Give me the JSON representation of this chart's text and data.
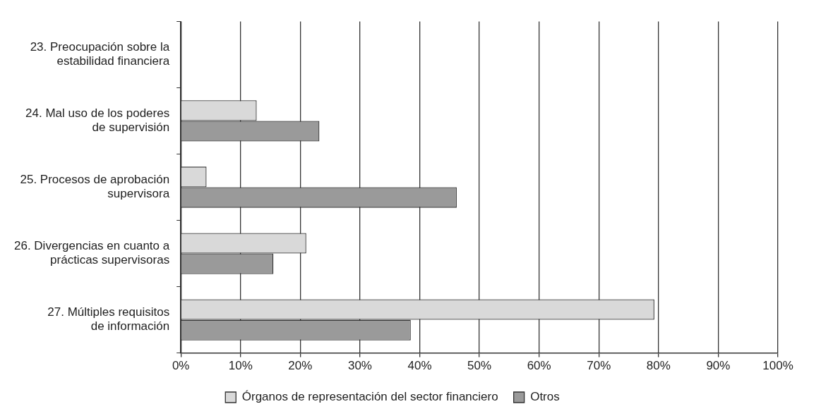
{
  "chart_data": {
    "type": "bar",
    "orientation": "horizontal",
    "categories": [
      "23. Preocupación sobre la\nestabilidad financiera",
      "24. Mal uso de los poderes\nde supervisión",
      "25. Procesos de aprobación\nsupervisora",
      "26. Divergencias en cuanto a\nprácticas supervisoras",
      "27. Múltiples requisitos\nde información"
    ],
    "series": [
      {
        "name": "Órganos de representación del sector financiero",
        "color": "#d9d9d9",
        "values": [
          null,
          12.7,
          4.3,
          21.0,
          79.3
        ]
      },
      {
        "name": "Otros",
        "color": "#9a9a9a",
        "values": [
          null,
          23.2,
          46.2,
          15.5,
          38.5
        ]
      }
    ],
    "xlim": [
      0,
      100
    ],
    "xticks": [
      {
        "value": 0,
        "label": "0%"
      },
      {
        "value": 10,
        "label": "10%"
      },
      {
        "value": 20,
        "label": "20%"
      },
      {
        "value": 30,
        "label": "30%"
      },
      {
        "value": 40,
        "label": "40%"
      },
      {
        "value": 50,
        "label": "50%"
      },
      {
        "value": 60,
        "label": "60%"
      },
      {
        "value": 70,
        "label": "70%"
      },
      {
        "value": 80,
        "label": "80%"
      },
      {
        "value": 90,
        "label": "90%"
      },
      {
        "value": 100,
        "label": "100%"
      }
    ],
    "grid": "x",
    "legend": "bottom"
  }
}
